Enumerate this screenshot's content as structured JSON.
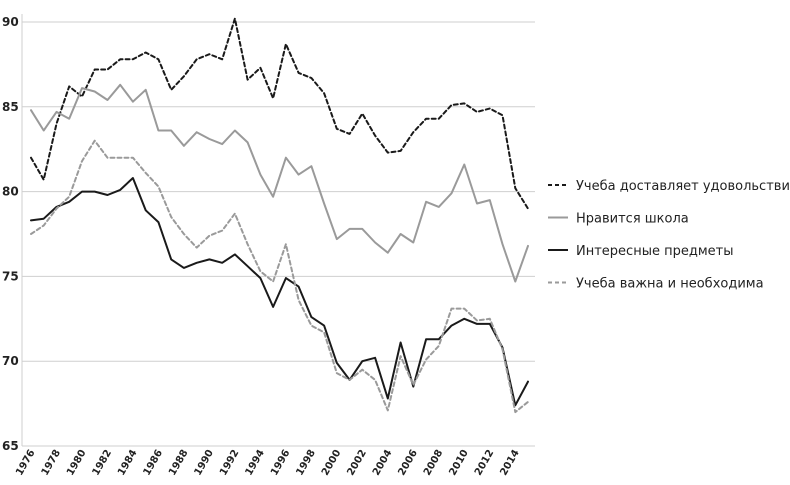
{
  "chart_data": {
    "type": "line",
    "x": [
      1976,
      1977,
      1978,
      1979,
      1980,
      1981,
      1982,
      1983,
      1984,
      1985,
      1986,
      1987,
      1988,
      1989,
      1990,
      1991,
      1992,
      1993,
      1994,
      1995,
      1996,
      1997,
      1998,
      1999,
      2000,
      2001,
      2002,
      2003,
      2004,
      2005,
      2006,
      2007,
      2008,
      2009,
      2010,
      2011,
      2012,
      2013,
      2014,
      2015
    ],
    "x_tick_labels": [
      "1976",
      "1978",
      "1980",
      "1982",
      "1984",
      "1986",
      "1988",
      "1990",
      "1992",
      "1994",
      "1996",
      "1998",
      "2000",
      "2002",
      "2004",
      "2006",
      "2008",
      "2010",
      "2012",
      "2014"
    ],
    "ylim": [
      65,
      90
    ],
    "y_ticks": [
      65,
      70,
      75,
      80,
      85,
      90
    ],
    "grid": true,
    "legend_position": "right",
    "series": [
      {
        "name": "Учеба доставляет удовольствие",
        "color": "#1a1a1a",
        "style": "dashed",
        "values": [
          82.0,
          80.7,
          84.0,
          86.2,
          85.6,
          87.2,
          87.2,
          87.8,
          87.8,
          88.2,
          87.8,
          86.0,
          86.8,
          87.8,
          88.1,
          87.8,
          90.2,
          86.6,
          87.3,
          85.5,
          88.7,
          87.0,
          86.7,
          85.8,
          83.7,
          83.4,
          84.6,
          83.3,
          82.3,
          82.4,
          83.5,
          84.3,
          84.3,
          85.1,
          85.2,
          84.7,
          84.9,
          84.5,
          80.2,
          79.0
        ]
      },
      {
        "name": "Нравится школа",
        "color": "#9a9a9a",
        "style": "solid",
        "values": [
          84.8,
          83.6,
          84.7,
          84.3,
          86.1,
          85.9,
          85.4,
          86.3,
          85.3,
          86.0,
          83.6,
          83.6,
          82.7,
          83.5,
          83.1,
          82.8,
          83.6,
          82.9,
          81.0,
          79.7,
          82.0,
          81.0,
          81.5,
          79.3,
          77.2,
          77.8,
          77.8,
          77.0,
          76.4,
          77.5,
          77.0,
          79.4,
          79.1,
          79.9,
          81.6,
          79.3,
          79.5,
          76.9,
          74.7,
          76.8
        ]
      },
      {
        "name": "Интересные предметы",
        "color": "#1a1a1a",
        "style": "solid",
        "values": [
          78.3,
          78.4,
          79.1,
          79.4,
          80.0,
          80.0,
          79.8,
          80.1,
          80.8,
          78.9,
          78.2,
          76.0,
          75.5,
          75.8,
          76.0,
          75.8,
          76.3,
          75.6,
          74.9,
          73.2,
          74.9,
          74.4,
          72.6,
          72.1,
          69.9,
          68.9,
          70.0,
          70.2,
          67.8,
          71.1,
          68.5,
          71.3,
          71.3,
          72.1,
          72.5,
          72.2,
          72.2,
          70.8,
          67.4,
          68.8
        ]
      },
      {
        "name": "Учеба важна и необходима",
        "color": "#9a9a9a",
        "style": "dashed",
        "values": [
          77.5,
          78.0,
          79.0,
          79.7,
          81.8,
          83.0,
          82.0,
          82.0,
          82.0,
          81.1,
          80.3,
          78.5,
          77.5,
          76.7,
          77.4,
          77.7,
          78.7,
          76.9,
          75.3,
          74.7,
          76.9,
          73.6,
          72.1,
          71.7,
          69.3,
          68.9,
          69.5,
          68.9,
          67.1,
          70.3,
          68.6,
          70.1,
          70.9,
          73.1,
          73.1,
          72.4,
          72.5,
          70.7,
          67.0,
          67.6
        ]
      }
    ]
  }
}
